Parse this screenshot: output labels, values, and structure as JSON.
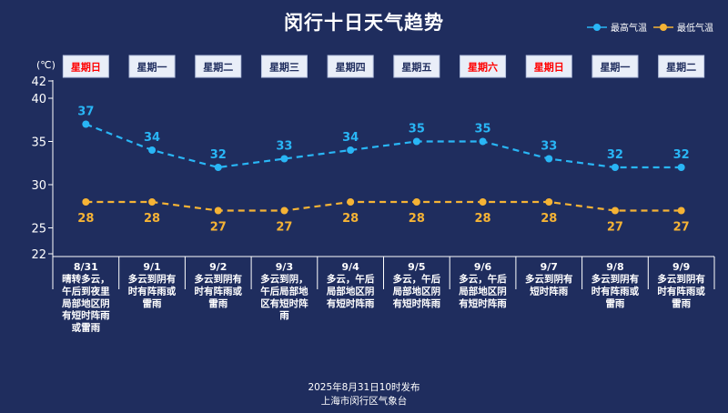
{
  "title": "闵行十日天气趋势",
  "unit": "(℃)",
  "legend": [
    {
      "name": "最高气温",
      "color": "#29b6f6"
    },
    {
      "name": "最低气温",
      "color": "#f5b335"
    }
  ],
  "colors": {
    "background": "#1f2d5e",
    "high": "#29b6f6",
    "low": "#f5b335",
    "weekend": "#ff0000",
    "weekday": "#1f2d5e",
    "axis": "#ffffff"
  },
  "chart_data": {
    "type": "line",
    "title": "闵行十日天气趋势",
    "categories": [
      "8/31",
      "9/1",
      "9/2",
      "9/3",
      "9/4",
      "9/5",
      "9/6",
      "9/7",
      "9/8",
      "9/9"
    ],
    "weekdays": [
      "星期日",
      "星期一",
      "星期二",
      "星期三",
      "星期四",
      "星期五",
      "星期六",
      "星期日",
      "星期一",
      "星期二"
    ],
    "weekend": [
      true,
      false,
      false,
      false,
      false,
      false,
      true,
      true,
      false,
      false
    ],
    "weather": [
      "晴转多云，午后到夜里局部地区阴有短时阵雨或雷雨",
      "多云到阴有时有阵雨或雷雨",
      "多云到阴有时有阵雨或雷雨",
      "多云到阴，午后局部地区有短时阵雨",
      "多云，午后局部地区阴有短时阵雨",
      "多云，午后局部地区阴有短时阵雨",
      "多云，午后局部地区阴有短时阵雨",
      "多云到阴有短时阵雨",
      "多云到阴有时有阵雨或雷雨",
      "多云到阴有时有阵雨或雷雨"
    ],
    "series": [
      {
        "name": "最高气温",
        "values": [
          37,
          34,
          32,
          33,
          34,
          35,
          35,
          33,
          32,
          32
        ]
      },
      {
        "name": "最低气温",
        "values": [
          28,
          28,
          27,
          27,
          28,
          28,
          28,
          28,
          27,
          27
        ]
      }
    ],
    "ylabel": "(℃)",
    "yticks": [
      22,
      25,
      30,
      35,
      40,
      42
    ],
    "ylim": [
      22,
      42
    ],
    "grid": false,
    "legend_position": "top-right"
  },
  "footer": {
    "line1": "2025年8月31日10时发布",
    "line2": "上海市闵行区气象台"
  }
}
